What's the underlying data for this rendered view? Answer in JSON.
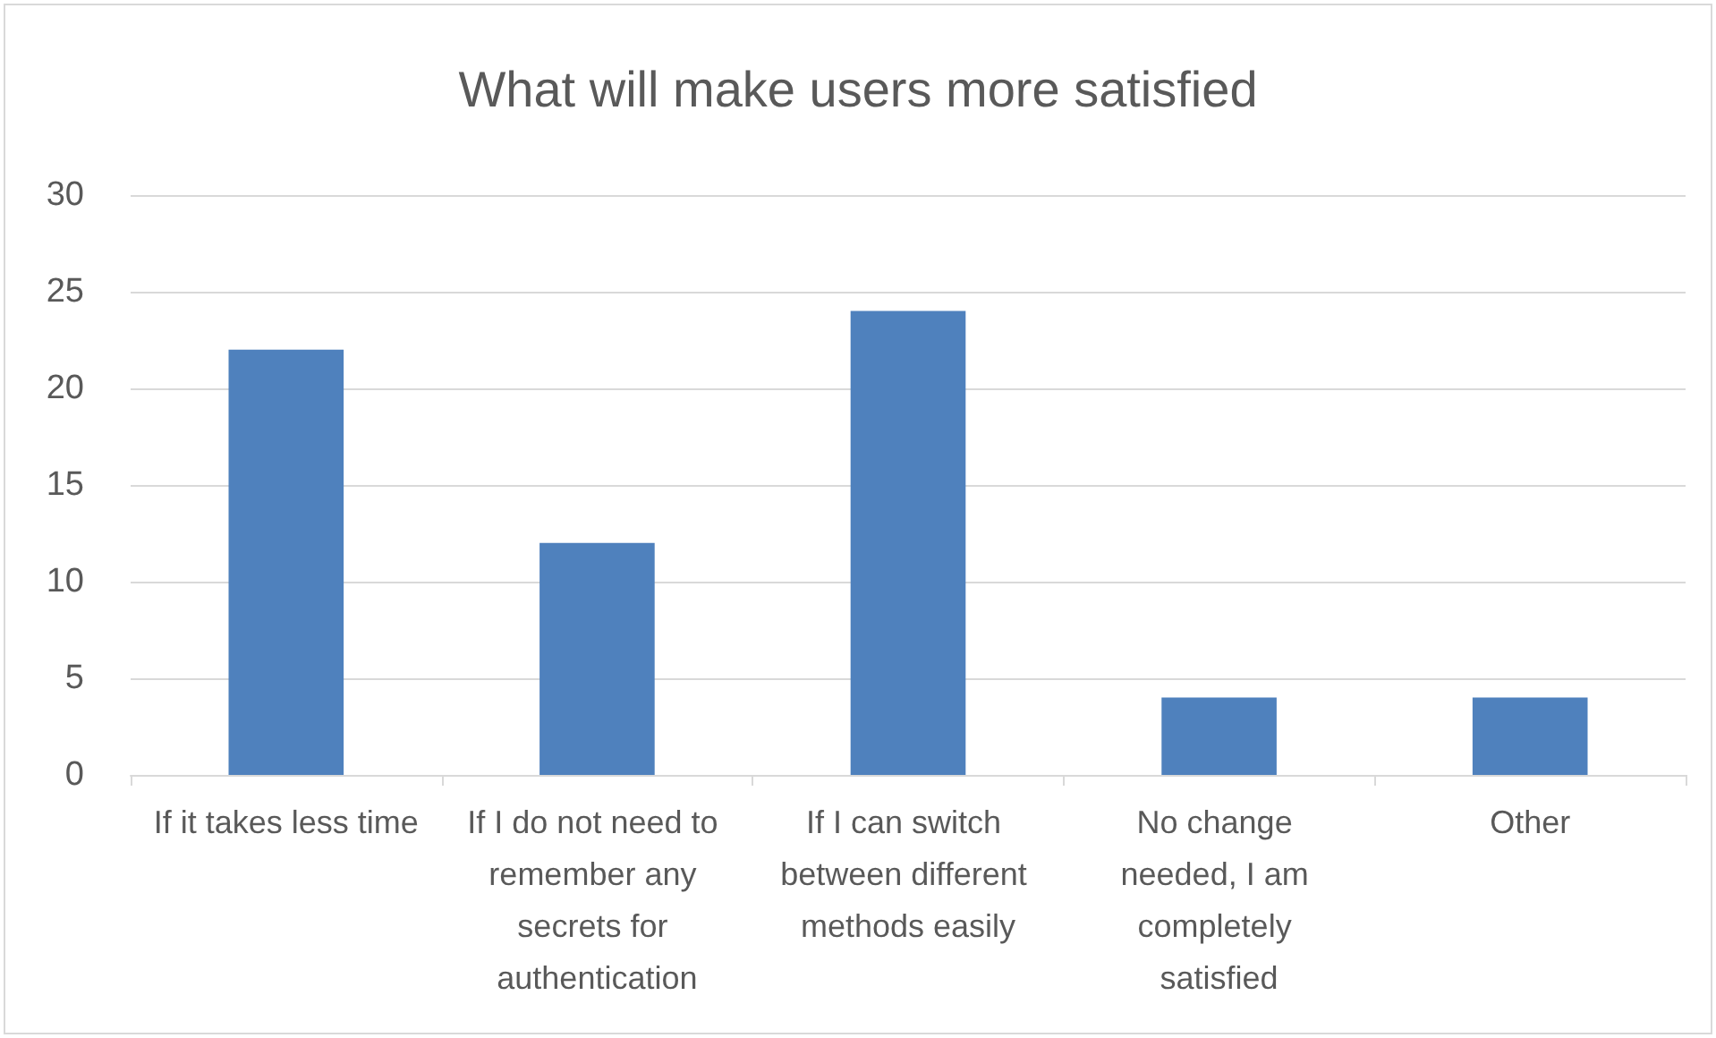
{
  "chart_data": {
    "type": "bar",
    "title": "What will make users more satisfied",
    "categories": [
      "If it takes less time",
      "If I do not need to remember any secrets for authentication",
      "If I can switch between different methods easily",
      "No change needed, I am completely satisfied",
      "Other"
    ],
    "values": [
      22,
      12,
      24,
      4,
      4
    ],
    "color": "#4f81bd",
    "ylim": [
      0,
      30
    ],
    "yticks": [
      0,
      5,
      10,
      15,
      20,
      25,
      30
    ],
    "grid": "y"
  }
}
